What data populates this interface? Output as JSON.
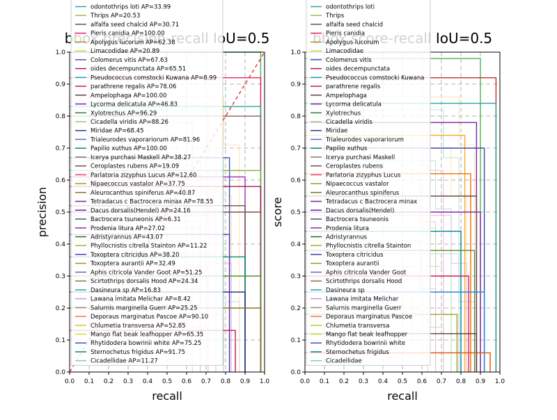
{
  "figure": {
    "left": {
      "title": "bbox precision-recall IoU=0.5",
      "xlabel": "recall",
      "ylabel": "precision"
    },
    "right": {
      "title": "bbox score-recall IoU=0.5",
      "xlabel": "recall",
      "ylabel": "score"
    }
  },
  "chart_data": [
    {
      "type": "line",
      "title": "bbox precision-recall IoU=0.5",
      "xlabel": "recall",
      "ylabel": "precision",
      "xlim": [
        0.0,
        1.0
      ],
      "ylim": [
        0.0,
        1.0
      ],
      "xticks": [
        "0.0",
        "0.1",
        "0.2",
        "0.3",
        "0.4",
        "0.5",
        "0.6",
        "0.7",
        "0.8",
        "0.9",
        "1.0"
      ],
      "yticks": [
        "0.0",
        "0.1",
        "0.2",
        "0.3",
        "0.4",
        "0.5",
        "0.6",
        "0.7",
        "0.8",
        "0.9",
        "1.0"
      ],
      "grid": true,
      "legend_position": "upper-left",
      "legend": [
        "odontothrips loti AP=33.99",
        "Thrips AP=20.53",
        "alfalfa seed chalcid AP=30.71",
        "Pieris canidia AP=100.00",
        "Apolygus lucorum AP=62.38",
        "Limacodidae AP=20.89",
        "Colomerus vitis AP=67.63",
        "oides decempunctata AP=65.51",
        "Pseudococcus comstocki Kuwana AP=8.99",
        "parathrene regalis AP=78.06",
        "Ampelophaga AP=100.00",
        "Lycorma delicatula AP=46.83",
        "Xylotrechus AP=96.29",
        "Cicadella viridis AP=88.26",
        "Miridae AP=68.45",
        "Trialeurodes vaporariorum AP=81.96",
        "Papilio xuthus AP=100.00",
        "Icerya purchasi Maskell AP=38.27",
        "Ceroplastes rubens AP=19.09",
        "Parlatoria zizyphus Lucus AP=12.60",
        "Nipaecoccus vastalor AP=37.75",
        "Aleurocanthus spiniferus AP=40.87",
        "Tetradacus c Bactrocera minax AP=78.55",
        "Dacus dorsalis(Hendel) AP=24.16",
        "Bactrocera tsuneonis AP=6.31",
        "Prodenia litura AP=27.02",
        "Adristyrannus AP=43.07",
        "Phyllocnistis citrella Stainton AP=11.22",
        "Toxoptera citricidus AP=38.20",
        "Toxoptera aurantii AP=32.49",
        "Aphis citricola Vander Goot AP=51.25",
        "Scirtothrips dorsalis Hood AP=24.34",
        "Dasineura sp AP=16.83",
        "Lawana imitata Melichar AP=8.42",
        "Salurnis marginella Guerr AP=25.25",
        "Deporaus marginatus Pascoe AP=90.10",
        "Chlumetia transversa AP=52.85",
        "Mango flat beak leafhopper AP=65.35",
        "Rhytidodera bowrinii white AP=75.25",
        "Sternochetus frigidus AP=91.75",
        "Cicadellidae AP=11.27"
      ],
      "series_drops": [
        {
          "y": 1.0,
          "x": 0.98,
          "color": "#4caf50"
        },
        {
          "y": 0.92,
          "x": 0.98,
          "color": "#e91e63"
        },
        {
          "y": 0.83,
          "x": 0.98,
          "color": "#26a69a"
        },
        {
          "y": 0.8,
          "x": 0.98,
          "color": "#8d6e63"
        },
        {
          "y": 0.67,
          "x": 0.82,
          "color": "#3f51b5"
        },
        {
          "y": 0.63,
          "x": 0.98,
          "color": "#7cb342"
        },
        {
          "y": 0.61,
          "x": 0.9,
          "color": "#9c27b0"
        },
        {
          "y": 0.58,
          "x": 0.98,
          "color": "#ad1457"
        },
        {
          "y": 0.52,
          "x": 0.9,
          "color": "#6d4c41"
        },
        {
          "y": 0.5,
          "x": 0.98,
          "color": "#795548"
        },
        {
          "y": 0.43,
          "x": 0.82,
          "color": "#5e35b1"
        },
        {
          "y": 0.36,
          "x": 0.9,
          "color": "#00897b"
        },
        {
          "y": 0.3,
          "x": 0.98,
          "color": "#558b2f"
        },
        {
          "y": 0.25,
          "x": 0.9,
          "color": "#283593"
        },
        {
          "y": 0.2,
          "x": 0.98,
          "color": "#827717"
        },
        {
          "y": 0.13,
          "x": 0.85,
          "color": "#c2185b"
        }
      ],
      "diagonal_line": {
        "from": [
          0.0,
          0.0
        ],
        "to": [
          1.0,
          1.0
        ],
        "color": "#e53935",
        "style": "dashed"
      }
    },
    {
      "type": "line",
      "title": "bbox score-recall IoU=0.5",
      "xlabel": "recall",
      "ylabel": "score",
      "xlim": [
        0.0,
        1.0
      ],
      "ylim": [
        0.0,
        1.0
      ],
      "xticks": [
        "0.0",
        "0.1",
        "0.2",
        "0.3",
        "0.4",
        "0.5",
        "0.6",
        "0.7",
        "0.8",
        "0.9",
        "1.0"
      ],
      "yticks": [
        "0.0",
        "0.1",
        "0.2",
        "0.3",
        "0.4",
        "0.5",
        "0.6",
        "0.7",
        "0.8",
        "0.9",
        "1.0"
      ],
      "grid": true,
      "legend_position": "upper-left",
      "legend": [
        "odontothrips loti",
        "Thrips",
        "alfalfa seed chalcid",
        "Pieris canidia",
        "Apolygus lucorum",
        "Limacodidae",
        "Colomerus vitis",
        "oides decempunctata",
        "Pseudococcus comstocki Kuwana",
        "parathrene regalis",
        "Ampelophaga",
        "Lycorma delicatula",
        "Xylotrechus",
        "Cicadella viridis",
        "Miridae",
        "Trialeurodes vaporariorum",
        "Papilio xuthus",
        "Icerya purchasi Maskell",
        "Ceroplastes rubens",
        "Parlatoria zizyphus Lucus",
        "Nipaecoccus vastalor",
        "Aleurocanthus spiniferus",
        "Tetradacus c Bactrocera minax",
        "Dacus dorsalis(Hendel)",
        "Bactrocera tsuneonis",
        "Prodenia litura",
        "Adristyrannus",
        "Phyllocnistis citrella Stainton",
        "Toxoptera citricidus",
        "Toxoptera aurantii",
        "Aphis citricola Vander Goot",
        "Scirtothrips dorsalis Hood",
        "Dasineura sp",
        "Lawana imitata Melichar",
        "Salurnis marginella Guerr",
        "Deporaus marginatus Pascoe",
        "Chlumetia transversa",
        "Mango flat beak leafhopper",
        "Rhytidodera bowrinii white",
        "Sternochetus frigidus",
        "Cicadellidae"
      ],
      "series_drops": [
        {
          "y": 0.98,
          "x": 0.9,
          "color": "#4caf50"
        },
        {
          "y": 0.92,
          "x": 0.98,
          "color": "#c62828"
        },
        {
          "y": 0.84,
          "x": 0.98,
          "color": "#26a69a"
        },
        {
          "y": 0.78,
          "x": 0.88,
          "color": "#7b1fa2"
        },
        {
          "y": 0.74,
          "x": 0.82,
          "color": "#f9a825"
        },
        {
          "y": 0.7,
          "x": 0.92,
          "color": "#3949ab"
        },
        {
          "y": 0.62,
          "x": 0.85,
          "color": "#ef6c00"
        },
        {
          "y": 0.55,
          "x": 0.88,
          "color": "#6d4c41"
        },
        {
          "y": 0.5,
          "x": 0.9,
          "color": "#8e24aa"
        },
        {
          "y": 0.44,
          "x": 0.8,
          "color": "#00838f"
        },
        {
          "y": 0.38,
          "x": 0.87,
          "color": "#558b2f"
        },
        {
          "y": 0.3,
          "x": 0.84,
          "color": "#d81b60"
        },
        {
          "y": 0.25,
          "x": 0.92,
          "color": "#1e88e5"
        },
        {
          "y": 0.18,
          "x": 0.78,
          "color": "#9e9d24"
        },
        {
          "y": 0.12,
          "x": 0.88,
          "color": "#5d4037"
        },
        {
          "y": 0.06,
          "x": 0.95,
          "color": "#e65100"
        }
      ]
    }
  ]
}
